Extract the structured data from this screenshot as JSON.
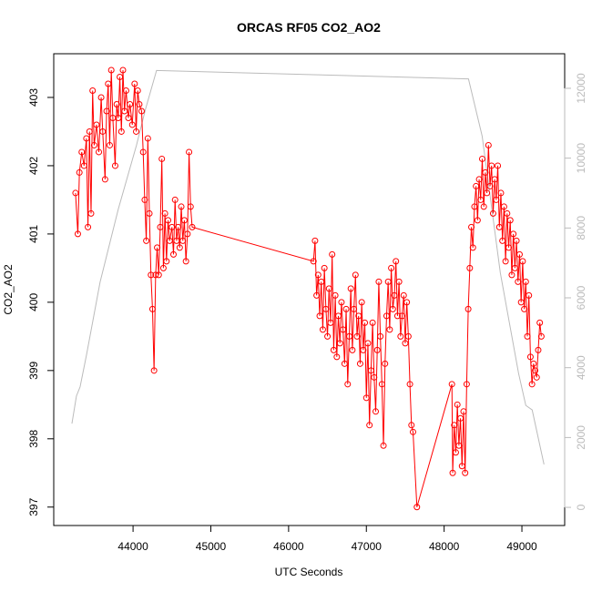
{
  "chart_data": {
    "type": "line",
    "title": "ORCAS RF05 CO2_AO2",
    "xlabel": "UTC Seconds",
    "ylabel": "CO2_AO2",
    "xlim": [
      42980,
      49550
    ],
    "ylim": [
      396.73,
      403.64
    ],
    "y2lim": [
      -520,
      12990
    ],
    "xticks": [
      44000,
      45000,
      46000,
      47000,
      48000,
      49000
    ],
    "yticks": [
      397,
      398,
      399,
      400,
      401,
      402,
      403
    ],
    "y2ticks": [
      0,
      2000,
      4000,
      6000,
      8000,
      10000,
      12000
    ],
    "y2_color": "#bbbbbb",
    "series": [
      {
        "color": "#bbbbbb",
        "axis": "y2",
        "marker": "none",
        "x": [
          43214,
          43272,
          43319,
          43401,
          43576,
          43810,
          44044,
          44161,
          44302,
          48313,
          48489,
          48723,
          48957,
          49050,
          49132,
          49284
        ],
        "values": [
          2400,
          3190,
          3450,
          4360,
          6450,
          8540,
          10370,
          11410,
          12510,
          12270,
          10630,
          6710,
          3840,
          2920,
          2790,
          1230
        ]
      },
      {
        "color": "#ff0000",
        "axis": "y",
        "marker": "circle",
        "x": [
          43260,
          43290,
          43310,
          43340,
          43370,
          43400,
          43420,
          43440,
          43460,
          43480,
          43500,
          43530,
          43560,
          43590,
          43610,
          43640,
          43660,
          43680,
          43700,
          43720,
          43740,
          43770,
          43790,
          43810,
          43830,
          43850,
          43870,
          43890,
          43910,
          43940,
          43960,
          43990,
          44020,
          44040,
          44060,
          44080,
          44110,
          44130,
          44150,
          44170,
          44190,
          44210,
          44230,
          44250,
          44270,
          44290,
          44310,
          44330,
          44350,
          44370,
          44390,
          44410,
          44430,
          44450,
          44470,
          44500,
          44520,
          44540,
          44560,
          44580,
          44600,
          44620,
          44640,
          44660,
          44680,
          44700,
          44720,
          44740,
          44760,
          46320,
          46340,
          46360,
          46380,
          46400,
          46420,
          46440,
          46460,
          46480,
          46500,
          46520,
          46540,
          46560,
          46580,
          46600,
          46620,
          46640,
          46660,
          46680,
          46700,
          46720,
          46740,
          46760,
          46780,
          46800,
          46820,
          46840,
          46860,
          46880,
          46900,
          46920,
          46940,
          46960,
          46980,
          47000,
          47020,
          47040,
          47060,
          47080,
          47100,
          47120,
          47140,
          47160,
          47180,
          47200,
          47220,
          47240,
          47260,
          47280,
          47300,
          47320,
          47340,
          47360,
          47380,
          47400,
          47420,
          47440,
          47460,
          47480,
          47500,
          47520,
          47540,
          47560,
          47580,
          47600,
          47650,
          48100,
          48110,
          48130,
          48150,
          48170,
          48190,
          48210,
          48230,
          48250,
          48270,
          48290,
          48310,
          48330,
          48350,
          48370,
          48390,
          48410,
          48430,
          48450,
          48470,
          48490,
          48510,
          48530,
          48550,
          48570,
          48590,
          48610,
          48630,
          48650,
          48670,
          48690,
          48710,
          48730,
          48750,
          48770,
          48790,
          48810,
          48830,
          48850,
          48870,
          48890,
          48910,
          48930,
          48950,
          48970,
          48990,
          49010,
          49030,
          49050,
          49070,
          49090,
          49110,
          49130,
          49150,
          49170,
          49190,
          49210,
          49230,
          49250
        ],
        "values": [
          401.6,
          401.0,
          401.9,
          402.2,
          402.0,
          402.4,
          401.1,
          402.5,
          401.3,
          403.1,
          402.3,
          402.6,
          402.2,
          403.0,
          402.5,
          401.8,
          402.8,
          403.2,
          402.3,
          403.4,
          402.7,
          402.0,
          402.9,
          402.7,
          403.3,
          402.5,
          403.4,
          402.8,
          403.1,
          402.7,
          402.9,
          402.6,
          403.2,
          402.5,
          403.1,
          402.9,
          402.8,
          402.2,
          401.5,
          400.9,
          402.4,
          401.3,
          400.4,
          399.9,
          399.0,
          400.4,
          400.8,
          400.4,
          401.1,
          402.1,
          400.5,
          401.3,
          400.6,
          401.2,
          400.9,
          401.1,
          400.7,
          401.5,
          400.9,
          401.1,
          400.8,
          401.4,
          400.9,
          401.2,
          400.6,
          401.0,
          402.2,
          401.4,
          401.1,
          400.6,
          400.9,
          400.1,
          400.4,
          399.8,
          400.3,
          399.6,
          400.5,
          399.9,
          399.5,
          400.2,
          399.7,
          400.7,
          399.3,
          400.1,
          399.2,
          399.8,
          399.4,
          400.0,
          399.6,
          399.1,
          399.9,
          398.8,
          399.5,
          400.2,
          399.3,
          399.9,
          400.4,
          399.5,
          399.8,
          399.1,
          400.0,
          399.3,
          399.7,
          398.6,
          399.4,
          398.2,
          399.0,
          399.7,
          398.9,
          398.4,
          399.3,
          400.3,
          399.5,
          398.8,
          397.9,
          399.1,
          399.8,
          400.3,
          399.6,
          400.5,
          399.9,
          400.1,
          400.6,
          399.8,
          400.3,
          399.5,
          399.8,
          400.1,
          399.4,
          400.0,
          399.5,
          398.8,
          398.2,
          398.1,
          397.0,
          398.8,
          397.5,
          398.2,
          397.8,
          398.5,
          397.9,
          398.3,
          397.6,
          398.4,
          397.5,
          398.8,
          399.9,
          400.5,
          401.1,
          400.8,
          401.4,
          401.7,
          401.2,
          401.8,
          401.5,
          402.1,
          401.4,
          401.9,
          401.6,
          402.3,
          401.7,
          402.0,
          401.3,
          401.8,
          401.5,
          402.0,
          401.1,
          401.6,
          400.9,
          401.4,
          400.6,
          401.3,
          400.8,
          401.2,
          400.4,
          401.0,
          400.5,
          400.9,
          400.3,
          400.7,
          400.0,
          400.6,
          399.9,
          400.3,
          399.5,
          400.1,
          399.2,
          398.8,
          399.1,
          399.0,
          398.9,
          399.3,
          399.7,
          399.5
        ]
      }
    ]
  }
}
